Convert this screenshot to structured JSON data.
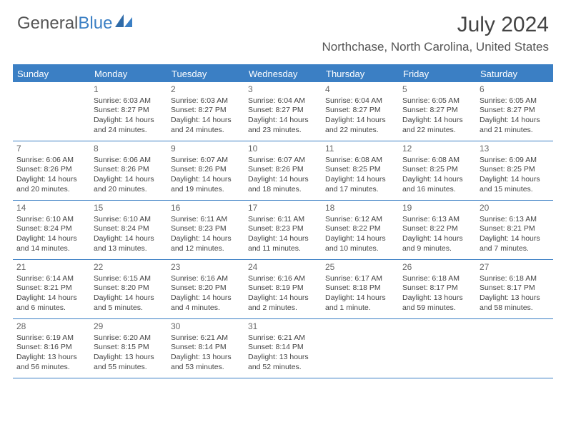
{
  "brand": {
    "general": "General",
    "blue": "Blue"
  },
  "title": "July 2024",
  "location": "Northchase, North Carolina, United States",
  "day_names": [
    "Sunday",
    "Monday",
    "Tuesday",
    "Wednesday",
    "Thursday",
    "Friday",
    "Saturday"
  ],
  "colors": {
    "accent": "#3b7fc4",
    "header_text": "#ffffff",
    "body_text": "#444444",
    "title_text": "#444444",
    "background": "#ffffff"
  },
  "typography": {
    "title_fontsize": 30,
    "location_fontsize": 17,
    "dayheader_fontsize": 13,
    "cell_fontsize": 10.5,
    "daynum_fontsize": 12
  },
  "layout": {
    "columns": 7,
    "rows": 5
  },
  "weeks": [
    [
      {
        "num": "",
        "sunrise": "",
        "sunset": "",
        "daylight": ""
      },
      {
        "num": "1",
        "sunrise": "Sunrise: 6:03 AM",
        "sunset": "Sunset: 8:27 PM",
        "daylight": "Daylight: 14 hours and 24 minutes."
      },
      {
        "num": "2",
        "sunrise": "Sunrise: 6:03 AM",
        "sunset": "Sunset: 8:27 PM",
        "daylight": "Daylight: 14 hours and 24 minutes."
      },
      {
        "num": "3",
        "sunrise": "Sunrise: 6:04 AM",
        "sunset": "Sunset: 8:27 PM",
        "daylight": "Daylight: 14 hours and 23 minutes."
      },
      {
        "num": "4",
        "sunrise": "Sunrise: 6:04 AM",
        "sunset": "Sunset: 8:27 PM",
        "daylight": "Daylight: 14 hours and 22 minutes."
      },
      {
        "num": "5",
        "sunrise": "Sunrise: 6:05 AM",
        "sunset": "Sunset: 8:27 PM",
        "daylight": "Daylight: 14 hours and 22 minutes."
      },
      {
        "num": "6",
        "sunrise": "Sunrise: 6:05 AM",
        "sunset": "Sunset: 8:27 PM",
        "daylight": "Daylight: 14 hours and 21 minutes."
      }
    ],
    [
      {
        "num": "7",
        "sunrise": "Sunrise: 6:06 AM",
        "sunset": "Sunset: 8:26 PM",
        "daylight": "Daylight: 14 hours and 20 minutes."
      },
      {
        "num": "8",
        "sunrise": "Sunrise: 6:06 AM",
        "sunset": "Sunset: 8:26 PM",
        "daylight": "Daylight: 14 hours and 20 minutes."
      },
      {
        "num": "9",
        "sunrise": "Sunrise: 6:07 AM",
        "sunset": "Sunset: 8:26 PM",
        "daylight": "Daylight: 14 hours and 19 minutes."
      },
      {
        "num": "10",
        "sunrise": "Sunrise: 6:07 AM",
        "sunset": "Sunset: 8:26 PM",
        "daylight": "Daylight: 14 hours and 18 minutes."
      },
      {
        "num": "11",
        "sunrise": "Sunrise: 6:08 AM",
        "sunset": "Sunset: 8:25 PM",
        "daylight": "Daylight: 14 hours and 17 minutes."
      },
      {
        "num": "12",
        "sunrise": "Sunrise: 6:08 AM",
        "sunset": "Sunset: 8:25 PM",
        "daylight": "Daylight: 14 hours and 16 minutes."
      },
      {
        "num": "13",
        "sunrise": "Sunrise: 6:09 AM",
        "sunset": "Sunset: 8:25 PM",
        "daylight": "Daylight: 14 hours and 15 minutes."
      }
    ],
    [
      {
        "num": "14",
        "sunrise": "Sunrise: 6:10 AM",
        "sunset": "Sunset: 8:24 PM",
        "daylight": "Daylight: 14 hours and 14 minutes."
      },
      {
        "num": "15",
        "sunrise": "Sunrise: 6:10 AM",
        "sunset": "Sunset: 8:24 PM",
        "daylight": "Daylight: 14 hours and 13 minutes."
      },
      {
        "num": "16",
        "sunrise": "Sunrise: 6:11 AM",
        "sunset": "Sunset: 8:23 PM",
        "daylight": "Daylight: 14 hours and 12 minutes."
      },
      {
        "num": "17",
        "sunrise": "Sunrise: 6:11 AM",
        "sunset": "Sunset: 8:23 PM",
        "daylight": "Daylight: 14 hours and 11 minutes."
      },
      {
        "num": "18",
        "sunrise": "Sunrise: 6:12 AM",
        "sunset": "Sunset: 8:22 PM",
        "daylight": "Daylight: 14 hours and 10 minutes."
      },
      {
        "num": "19",
        "sunrise": "Sunrise: 6:13 AM",
        "sunset": "Sunset: 8:22 PM",
        "daylight": "Daylight: 14 hours and 9 minutes."
      },
      {
        "num": "20",
        "sunrise": "Sunrise: 6:13 AM",
        "sunset": "Sunset: 8:21 PM",
        "daylight": "Daylight: 14 hours and 7 minutes."
      }
    ],
    [
      {
        "num": "21",
        "sunrise": "Sunrise: 6:14 AM",
        "sunset": "Sunset: 8:21 PM",
        "daylight": "Daylight: 14 hours and 6 minutes."
      },
      {
        "num": "22",
        "sunrise": "Sunrise: 6:15 AM",
        "sunset": "Sunset: 8:20 PM",
        "daylight": "Daylight: 14 hours and 5 minutes."
      },
      {
        "num": "23",
        "sunrise": "Sunrise: 6:16 AM",
        "sunset": "Sunset: 8:20 PM",
        "daylight": "Daylight: 14 hours and 4 minutes."
      },
      {
        "num": "24",
        "sunrise": "Sunrise: 6:16 AM",
        "sunset": "Sunset: 8:19 PM",
        "daylight": "Daylight: 14 hours and 2 minutes."
      },
      {
        "num": "25",
        "sunrise": "Sunrise: 6:17 AM",
        "sunset": "Sunset: 8:18 PM",
        "daylight": "Daylight: 14 hours and 1 minute."
      },
      {
        "num": "26",
        "sunrise": "Sunrise: 6:18 AM",
        "sunset": "Sunset: 8:17 PM",
        "daylight": "Daylight: 13 hours and 59 minutes."
      },
      {
        "num": "27",
        "sunrise": "Sunrise: 6:18 AM",
        "sunset": "Sunset: 8:17 PM",
        "daylight": "Daylight: 13 hours and 58 minutes."
      }
    ],
    [
      {
        "num": "28",
        "sunrise": "Sunrise: 6:19 AM",
        "sunset": "Sunset: 8:16 PM",
        "daylight": "Daylight: 13 hours and 56 minutes."
      },
      {
        "num": "29",
        "sunrise": "Sunrise: 6:20 AM",
        "sunset": "Sunset: 8:15 PM",
        "daylight": "Daylight: 13 hours and 55 minutes."
      },
      {
        "num": "30",
        "sunrise": "Sunrise: 6:21 AM",
        "sunset": "Sunset: 8:14 PM",
        "daylight": "Daylight: 13 hours and 53 minutes."
      },
      {
        "num": "31",
        "sunrise": "Sunrise: 6:21 AM",
        "sunset": "Sunset: 8:14 PM",
        "daylight": "Daylight: 13 hours and 52 minutes."
      },
      {
        "num": "",
        "sunrise": "",
        "sunset": "",
        "daylight": ""
      },
      {
        "num": "",
        "sunrise": "",
        "sunset": "",
        "daylight": ""
      },
      {
        "num": "",
        "sunrise": "",
        "sunset": "",
        "daylight": ""
      }
    ]
  ]
}
